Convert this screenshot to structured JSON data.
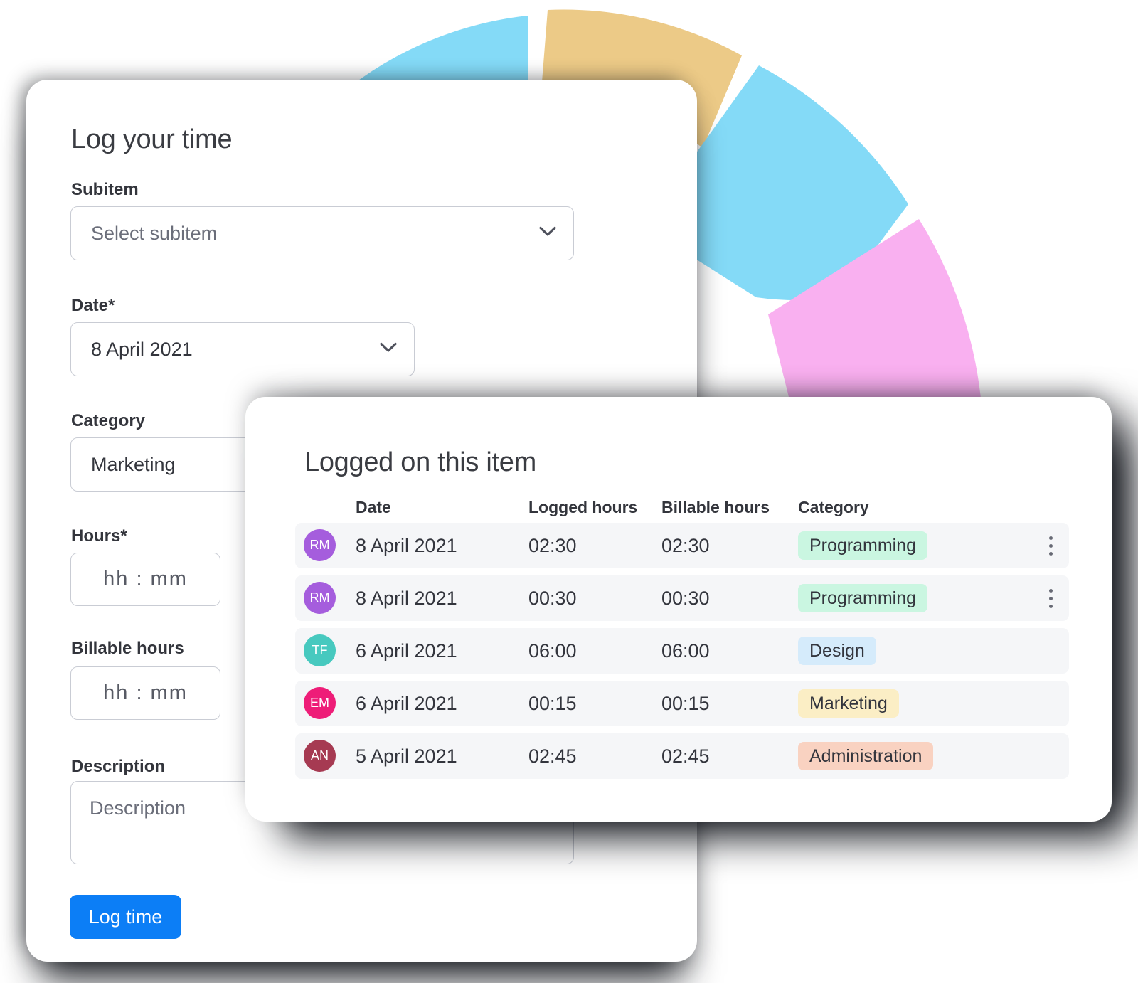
{
  "form": {
    "title": "Log your time",
    "subitem": {
      "label": "Subitem",
      "placeholder": "Select subitem"
    },
    "date": {
      "label": "Date*",
      "value": "8 April 2021"
    },
    "category": {
      "label": "Category",
      "value": "Marketing"
    },
    "hours": {
      "label": "Hours*",
      "placeholder": "hh : mm"
    },
    "billable": {
      "label": "Billable hours",
      "placeholder": "hh : mm"
    },
    "description": {
      "label": "Description",
      "placeholder": "Description"
    },
    "submit_label": "Log time"
  },
  "table": {
    "title": "Logged on this item",
    "columns": [
      "Date",
      "Logged hours",
      "Billable hours",
      "Category"
    ],
    "rows": [
      {
        "initials": "RM",
        "avatar_color": "#a55ddd",
        "date": "8 April 2021",
        "logged": "02:30",
        "billable": "02:30",
        "category": "Programming",
        "category_bg": "#caf6e1",
        "menu": true
      },
      {
        "initials": "RM",
        "avatar_color": "#a55ddd",
        "date": "8 April 2021",
        "logged": "00:30",
        "billable": "00:30",
        "category": "Programming",
        "category_bg": "#caf6e1",
        "menu": true
      },
      {
        "initials": "TF",
        "avatar_color": "#47c9bf",
        "date": "6 April 2021",
        "logged": "06:00",
        "billable": "06:00",
        "category": "Design",
        "category_bg": "#d5ebfb",
        "menu": false
      },
      {
        "initials": "EM",
        "avatar_color": "#ee1d78",
        "date": "6 April 2021",
        "logged": "00:15",
        "billable": "00:15",
        "category": "Marketing",
        "category_bg": "#fbeec5",
        "menu": false
      },
      {
        "initials": "AN",
        "avatar_color": "#a63a52",
        "date": "5 April 2021",
        "logged": "02:45",
        "billable": "02:45",
        "category": "Administration",
        "category_bg": "#f9d2c1",
        "menu": false
      }
    ]
  },
  "decor_ring": {
    "segments": [
      {
        "name": "ring-segment-blue-top-left",
        "color": "#84daf7"
      },
      {
        "name": "ring-segment-yellow-top",
        "color": "#ecca87"
      },
      {
        "name": "ring-segment-blue-right",
        "color": "#84daf7"
      },
      {
        "name": "ring-segment-pink-bottom-right",
        "color": "#f9b0f0"
      }
    ]
  },
  "colors": {
    "accent_blue": "#0c7ef6",
    "row_background": "#f5f6f8",
    "input_border": "#c9ccd4",
    "text_dark": "#33353c",
    "text_gray": "#6b6e7a"
  }
}
